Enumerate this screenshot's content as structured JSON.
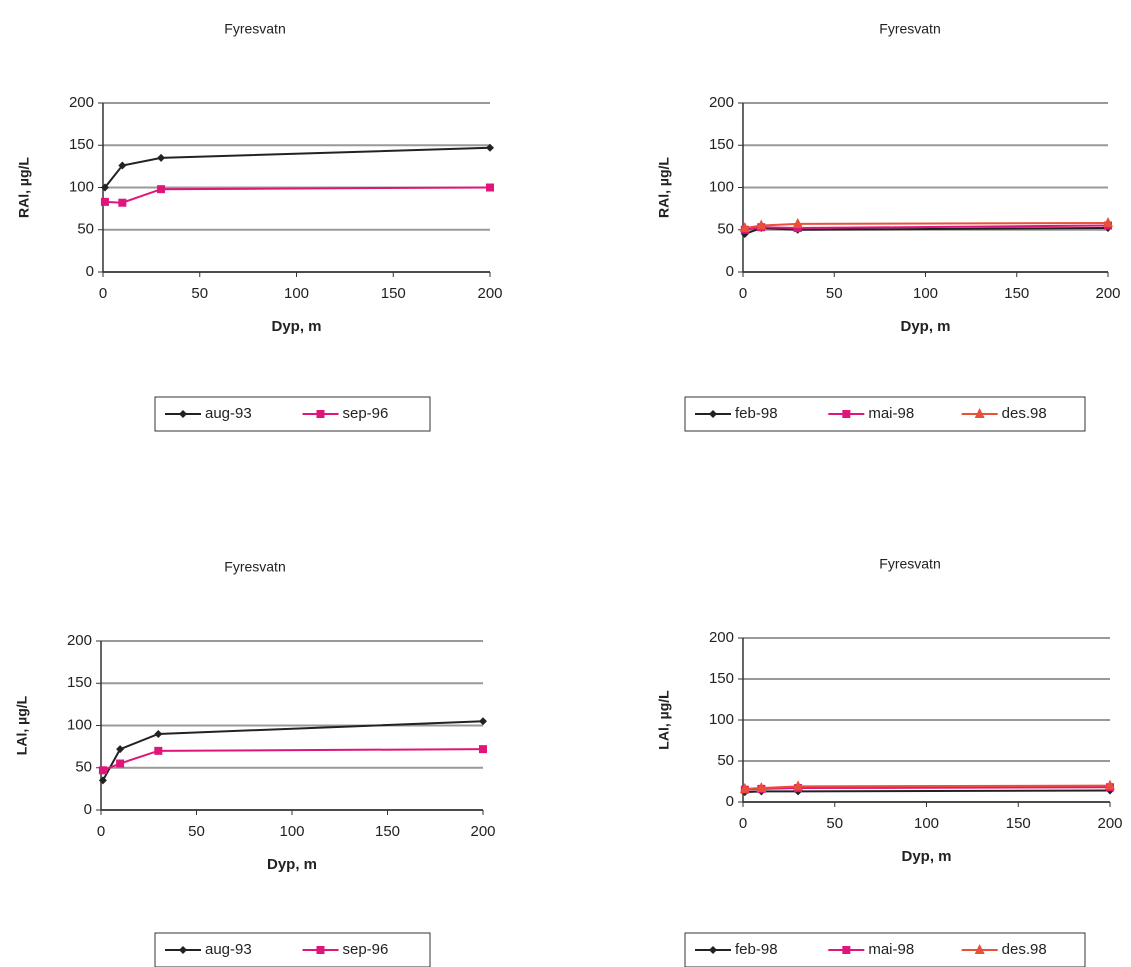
{
  "chart_data": [
    {
      "type": "line",
      "title": "Fyresvatn",
      "xlabel": "Dyp, m",
      "ylabel": "RAl, µg/L",
      "x": [
        1,
        10,
        30,
        200
      ],
      "xlim": [
        0,
        200
      ],
      "xticks": [
        0,
        50,
        100,
        150,
        200
      ],
      "ylim": [
        0,
        200
      ],
      "yticks": [
        0,
        50,
        100,
        150,
        200
      ],
      "grid": true,
      "series": [
        {
          "name": "aug-93",
          "color": "#222222",
          "marker": "diamond",
          "values": [
            100,
            126,
            135,
            147
          ]
        },
        {
          "name": "sep-96",
          "color": "#e0157a",
          "marker": "square",
          "values": [
            83,
            82,
            98,
            100
          ]
        }
      ]
    },
    {
      "type": "line",
      "title": "Fyresvatn",
      "xlabel": "Dyp, m",
      "ylabel": "RAl, µg/L",
      "x": [
        1,
        10,
        30,
        200
      ],
      "xlim": [
        0,
        200
      ],
      "xticks": [
        0,
        50,
        100,
        150,
        200
      ],
      "ylim": [
        0,
        200
      ],
      "yticks": [
        0,
        50,
        100,
        150,
        200
      ],
      "grid": true,
      "series": [
        {
          "name": "feb-98",
          "color": "#222222",
          "marker": "diamond",
          "values": [
            45,
            52,
            50,
            52
          ]
        },
        {
          "name": "mai-98",
          "color": "#e0157a",
          "marker": "square",
          "values": [
            50,
            53,
            52,
            55
          ]
        },
        {
          "name": "des.98",
          "color": "#e8503a",
          "marker": "triangle",
          "values": [
            52,
            55,
            57,
            58
          ]
        }
      ]
    },
    {
      "type": "line",
      "title": "Fyresvatn",
      "xlabel": "Dyp, m",
      "ylabel": "LAl, µg/L",
      "x": [
        1,
        10,
        30,
        200
      ],
      "xlim": [
        0,
        200
      ],
      "xticks": [
        0,
        50,
        100,
        150,
        200
      ],
      "ylim": [
        0,
        200
      ],
      "yticks": [
        0,
        50,
        100,
        150,
        200
      ],
      "grid": true,
      "series": [
        {
          "name": "aug-93",
          "color": "#222222",
          "marker": "diamond",
          "values": [
            35,
            72,
            90,
            105
          ]
        },
        {
          "name": "sep-96",
          "color": "#e0157a",
          "marker": "square",
          "values": [
            47,
            55,
            70,
            72
          ]
        }
      ]
    },
    {
      "type": "line",
      "title": "Fyresvatn",
      "xlabel": "Dyp, m",
      "ylabel": "LAl, µg/L",
      "x": [
        1,
        10,
        30,
        200
      ],
      "xlim": [
        0,
        200
      ],
      "xticks": [
        0,
        50,
        100,
        150,
        200
      ],
      "ylim": [
        0,
        200
      ],
      "yticks": [
        0,
        50,
        100,
        150,
        200
      ],
      "grid": true,
      "series": [
        {
          "name": "feb-98",
          "color": "#222222",
          "marker": "diamond",
          "values": [
            12,
            13,
            13,
            14
          ]
        },
        {
          "name": "mai-98",
          "color": "#e0157a",
          "marker": "square",
          "values": [
            15,
            16,
            17,
            18
          ]
        },
        {
          "name": "des.98",
          "color": "#e8503a",
          "marker": "triangle",
          "values": [
            16,
            17,
            19,
            20
          ]
        }
      ]
    }
  ]
}
